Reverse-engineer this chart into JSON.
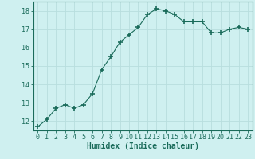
{
  "x": [
    0,
    1,
    2,
    3,
    4,
    5,
    6,
    7,
    8,
    9,
    10,
    11,
    12,
    13,
    14,
    15,
    16,
    17,
    18,
    19,
    20,
    21,
    22,
    23
  ],
  "y": [
    11.7,
    12.1,
    12.7,
    12.9,
    12.7,
    12.9,
    13.5,
    14.8,
    15.5,
    16.3,
    16.7,
    17.1,
    17.8,
    18.1,
    18.0,
    17.8,
    17.4,
    17.4,
    17.4,
    16.8,
    16.8,
    17.0,
    17.1,
    17.0
  ],
  "line_color": "#1a6b5a",
  "marker": "+",
  "marker_size": 4,
  "bg_color": "#cff0f0",
  "grid_color": "#b8dede",
  "axis_color": "#1a6b5a",
  "xlabel": "Humidex (Indice chaleur)",
  "xlabel_fontsize": 7,
  "tick_fontsize": 6,
  "ylim": [
    11.5,
    18.5
  ],
  "xlim": [
    -0.5,
    23.5
  ],
  "yticks": [
    12,
    13,
    14,
    15,
    16,
    17,
    18
  ],
  "xticks": [
    0,
    1,
    2,
    3,
    4,
    5,
    6,
    7,
    8,
    9,
    10,
    11,
    12,
    13,
    14,
    15,
    16,
    17,
    18,
    19,
    20,
    21,
    22,
    23
  ]
}
